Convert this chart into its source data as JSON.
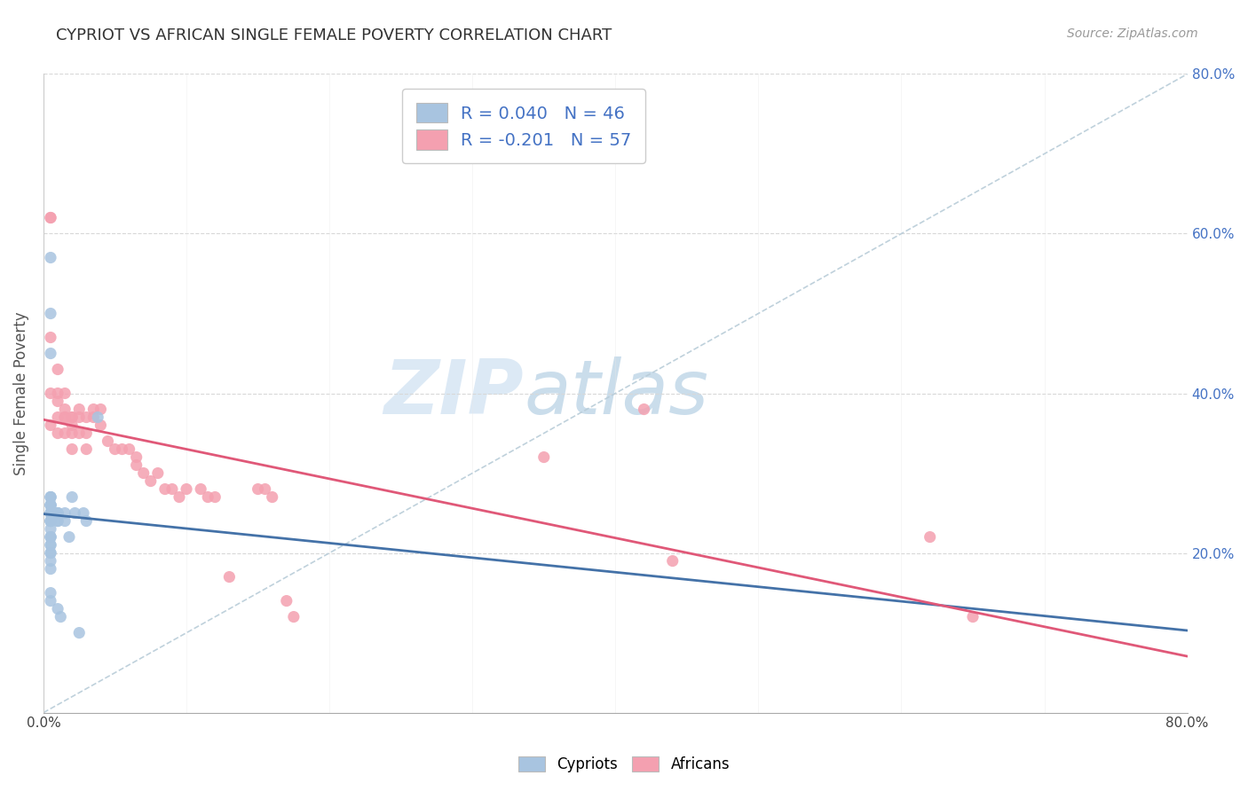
{
  "title": "CYPRIOT VS AFRICAN SINGLE FEMALE POVERTY CORRELATION CHART",
  "source": "Source: ZipAtlas.com",
  "ylabel": "Single Female Poverty",
  "xlim": [
    0.0,
    0.8
  ],
  "ylim": [
    0.0,
    0.8
  ],
  "xtick_positions": [
    0.0,
    0.8
  ],
  "xtick_labels": [
    "0.0%",
    "80.0%"
  ],
  "ytick_positions": [
    0.2,
    0.4,
    0.6,
    0.8
  ],
  "ytick_labels_right": [
    "20.0%",
    "40.0%",
    "60.0%",
    "80.0%"
  ],
  "cypriot_R": 0.04,
  "cypriot_N": 46,
  "african_R": -0.201,
  "african_N": 57,
  "cypriot_color": "#a8c4e0",
  "african_color": "#f4a0b0",
  "cypriot_trend_color": "#4472a8",
  "african_trend_color": "#e05878",
  "ref_line_color": "#b0c8d8",
  "legend_text_color": "#4472c4",
  "background_color": "#ffffff",
  "cypriot_x": [
    0.005,
    0.005,
    0.005,
    0.005,
    0.005,
    0.005,
    0.005,
    0.005,
    0.005,
    0.005,
    0.005,
    0.005,
    0.005,
    0.005,
    0.005,
    0.005,
    0.005,
    0.005,
    0.005,
    0.005,
    0.005,
    0.005,
    0.005,
    0.005,
    0.005,
    0.005,
    0.005,
    0.005,
    0.005,
    0.005,
    0.01,
    0.01,
    0.01,
    0.01,
    0.01,
    0.01,
    0.012,
    0.015,
    0.015,
    0.018,
    0.02,
    0.022,
    0.025,
    0.028,
    0.03,
    0.038
  ],
  "cypriot_y": [
    0.57,
    0.5,
    0.45,
    0.27,
    0.27,
    0.27,
    0.26,
    0.26,
    0.26,
    0.26,
    0.25,
    0.25,
    0.25,
    0.25,
    0.24,
    0.24,
    0.24,
    0.24,
    0.23,
    0.22,
    0.22,
    0.22,
    0.21,
    0.21,
    0.2,
    0.2,
    0.19,
    0.18,
    0.15,
    0.14,
    0.25,
    0.25,
    0.25,
    0.24,
    0.24,
    0.13,
    0.12,
    0.25,
    0.24,
    0.22,
    0.27,
    0.25,
    0.1,
    0.25,
    0.24,
    0.37
  ],
  "african_x": [
    0.005,
    0.005,
    0.005,
    0.005,
    0.005,
    0.01,
    0.01,
    0.01,
    0.01,
    0.01,
    0.015,
    0.015,
    0.015,
    0.015,
    0.015,
    0.02,
    0.02,
    0.02,
    0.02,
    0.02,
    0.025,
    0.025,
    0.025,
    0.03,
    0.03,
    0.03,
    0.035,
    0.035,
    0.04,
    0.04,
    0.045,
    0.05,
    0.055,
    0.06,
    0.065,
    0.065,
    0.07,
    0.075,
    0.08,
    0.085,
    0.09,
    0.095,
    0.1,
    0.11,
    0.115,
    0.12,
    0.13,
    0.15,
    0.155,
    0.16,
    0.17,
    0.175,
    0.35,
    0.42,
    0.44,
    0.62,
    0.65
  ],
  "african_y": [
    0.62,
    0.62,
    0.47,
    0.4,
    0.36,
    0.43,
    0.4,
    0.39,
    0.37,
    0.35,
    0.4,
    0.38,
    0.37,
    0.37,
    0.35,
    0.37,
    0.37,
    0.36,
    0.35,
    0.33,
    0.38,
    0.37,
    0.35,
    0.37,
    0.35,
    0.33,
    0.38,
    0.37,
    0.38,
    0.36,
    0.34,
    0.33,
    0.33,
    0.33,
    0.32,
    0.31,
    0.3,
    0.29,
    0.3,
    0.28,
    0.28,
    0.27,
    0.28,
    0.28,
    0.27,
    0.27,
    0.17,
    0.28,
    0.28,
    0.27,
    0.14,
    0.12,
    0.32,
    0.38,
    0.19,
    0.22,
    0.12
  ]
}
